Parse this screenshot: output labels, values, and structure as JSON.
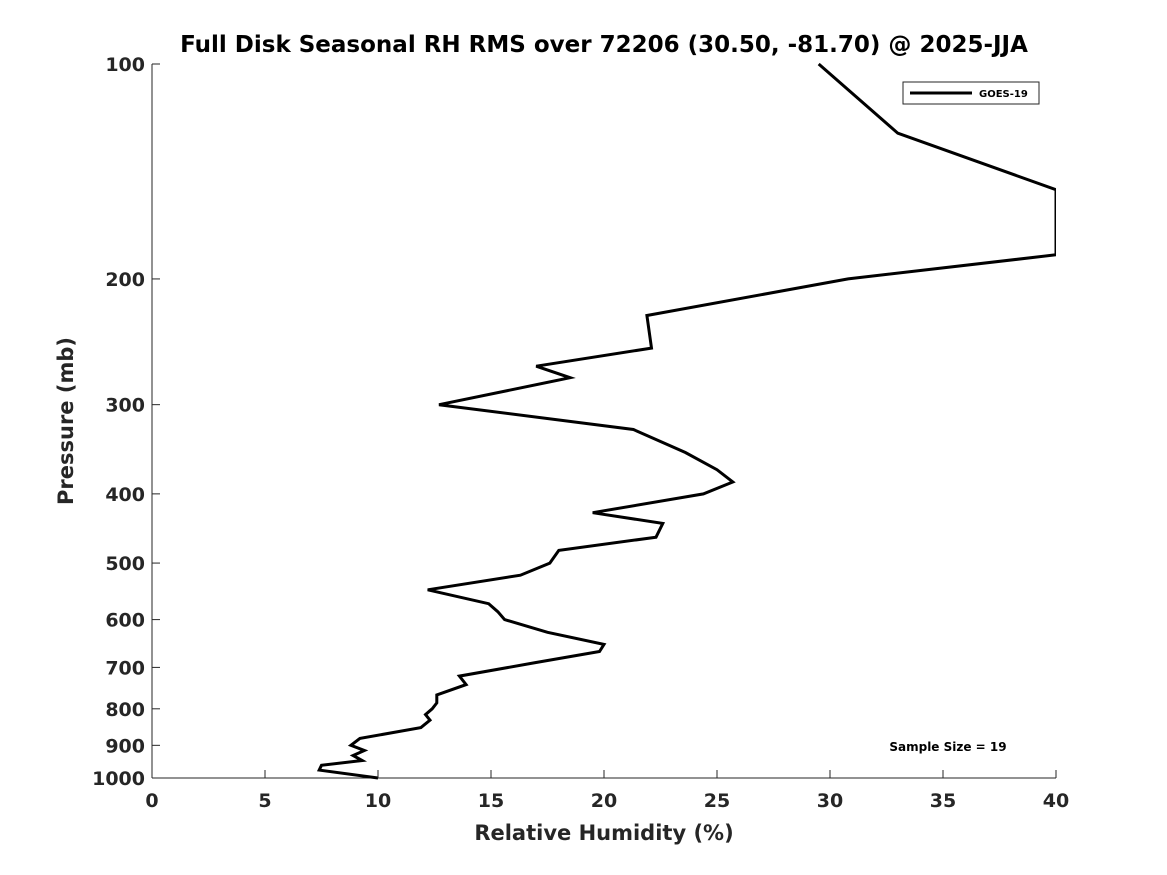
{
  "chart_data": {
    "type": "line",
    "title": "Full Disk Seasonal RH RMS over 72206 (30.50, -81.70) @ 2025-JJA",
    "xlabel": "Relative Humidity (%)",
    "ylabel": "Pressure (mb)",
    "xlim": [
      0,
      40
    ],
    "ylim": [
      100,
      1000
    ],
    "y_scale": "log",
    "y_reversed": true,
    "xticks": [
      0,
      5,
      10,
      15,
      20,
      25,
      30,
      35,
      40
    ],
    "yticks": [
      100,
      200,
      300,
      400,
      500,
      600,
      700,
      800,
      900,
      1000
    ],
    "grid": false,
    "legend_position": "top-right",
    "annotation": "Sample Size = 19",
    "series": [
      {
        "name": "GOES-19",
        "color": "#000000",
        "points": [
          [
            29.5,
            100
          ],
          [
            33.0,
            125
          ],
          [
            40.0,
            150
          ],
          [
            40.0,
            185
          ],
          [
            30.8,
            200
          ],
          [
            21.9,
            225
          ],
          [
            22.1,
            250
          ],
          [
            17.0,
            265
          ],
          [
            18.5,
            275
          ],
          [
            12.7,
            300
          ],
          [
            21.3,
            325
          ],
          [
            23.6,
            350
          ],
          [
            25.0,
            370
          ],
          [
            25.7,
            385
          ],
          [
            24.4,
            400
          ],
          [
            19.5,
            425
          ],
          [
            22.6,
            440
          ],
          [
            22.3,
            460
          ],
          [
            18.0,
            480
          ],
          [
            17.6,
            500
          ],
          [
            16.3,
            520
          ],
          [
            12.2,
            545
          ],
          [
            14.9,
            570
          ],
          [
            15.3,
            585
          ],
          [
            15.6,
            600
          ],
          [
            17.5,
            625
          ],
          [
            20.0,
            650
          ],
          [
            19.8,
            665
          ],
          [
            16.9,
            690
          ],
          [
            13.6,
            720
          ],
          [
            13.9,
            740
          ],
          [
            12.6,
            765
          ],
          [
            12.6,
            785
          ],
          [
            12.4,
            800
          ],
          [
            12.1,
            815
          ],
          [
            12.3,
            830
          ],
          [
            11.9,
            850
          ],
          [
            9.2,
            880
          ],
          [
            8.8,
            900
          ],
          [
            9.4,
            915
          ],
          [
            8.9,
            930
          ],
          [
            9.3,
            945
          ],
          [
            7.5,
            960
          ],
          [
            7.4,
            975
          ],
          [
            10.0,
            1000
          ]
        ]
      }
    ]
  }
}
